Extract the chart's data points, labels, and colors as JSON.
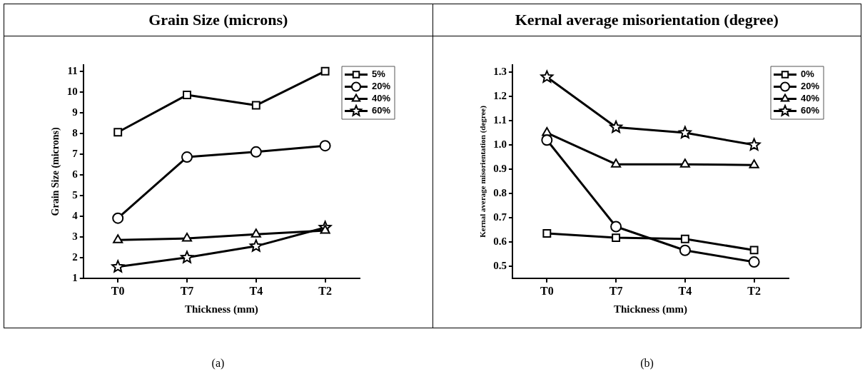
{
  "chart_data": [
    {
      "type": "line",
      "title": "Grain Size (microns)",
      "xlabel": "Thickness (mm)",
      "ylabel": "Grain Size (microns)",
      "categories": [
        "T0",
        "T7",
        "T4",
        "T2"
      ],
      "series": [
        {
          "name": "5%",
          "color": "#000000",
          "marker": "square",
          "values": [
            8.05,
            9.85,
            9.35,
            11.0
          ]
        },
        {
          "name": "20%",
          "color": "#000000",
          "marker": "circle",
          "values": [
            3.9,
            6.85,
            7.1,
            7.4
          ]
        },
        {
          "name": "40%",
          "color": "#000000",
          "marker": "triangle",
          "values": [
            2.85,
            2.92,
            3.12,
            3.3
          ]
        },
        {
          "name": "60%",
          "color": "#000000",
          "marker": "star",
          "values": [
            1.55,
            2.0,
            2.55,
            3.45
          ]
        }
      ],
      "ylim": [
        1,
        11.3
      ],
      "yticks": [
        1,
        2,
        3,
        4,
        5,
        6,
        7,
        8,
        9,
        10,
        11
      ],
      "grid": false,
      "legend": "top right",
      "line_style": "solid",
      "annotations": [
        "(a)"
      ]
    },
    {
      "type": "line",
      "title": "Kernal average misorientation (degree)",
      "xlabel": "Thickness (mm)",
      "ylabel": "Kernal average misorientation (degree)",
      "categories": [
        "T0",
        "T7",
        "T4",
        "T2"
      ],
      "series": [
        {
          "name": "0%",
          "color": "#000000",
          "marker": "square",
          "values": [
            0.635,
            0.617,
            0.612,
            0.566
          ]
        },
        {
          "name": "20%",
          "color": "#000000",
          "marker": "circle",
          "values": [
            1.02,
            0.663,
            0.565,
            0.517
          ]
        },
        {
          "name": "40%",
          "color": "#000000",
          "marker": "triangle",
          "values": [
            1.05,
            0.92,
            0.92,
            0.917
          ]
        },
        {
          "name": "60%",
          "color": "#000000",
          "marker": "star",
          "values": [
            1.28,
            1.073,
            1.05,
            1.0
          ]
        }
      ],
      "ylim": [
        0.45,
        1.33
      ],
      "yticks": [
        0.5,
        0.6,
        0.7,
        0.8,
        0.9,
        {
          "value": 1,
          "label": "1.0"
        },
        1.1,
        1.2,
        1.3
      ],
      "grid": false,
      "legend": "top right",
      "line_style": "solid",
      "annotations": [
        "(b)"
      ]
    }
  ]
}
